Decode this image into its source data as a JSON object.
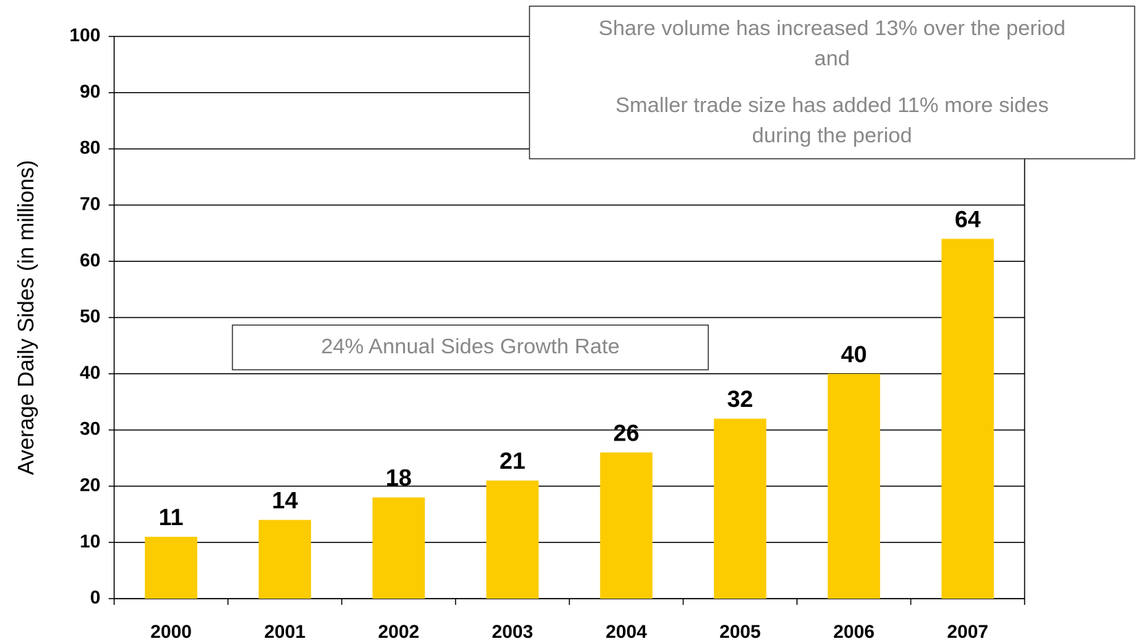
{
  "chart_data": {
    "type": "bar",
    "y_label": "Average Daily Sides (in millions)",
    "categories": [
      "2000",
      "2001",
      "2002",
      "2003",
      "2004",
      "2005",
      "2006",
      "2007"
    ],
    "values": [
      11,
      14,
      18,
      21,
      26,
      32,
      40,
      64
    ],
    "color": "#fccb00",
    "ylim": [
      0,
      100
    ],
    "yticks": [
      0,
      10,
      20,
      30,
      40,
      50,
      60,
      70,
      80,
      90,
      100
    ],
    "grid": true,
    "annotations": [
      {
        "lines": [
          "Share volume has increased 13% over the period",
          "and",
          "Smaller trade size has added 11% more sides",
          "during the period"
        ]
      },
      {
        "lines": [
          "24% Annual Sides Growth Rate"
        ]
      }
    ]
  }
}
